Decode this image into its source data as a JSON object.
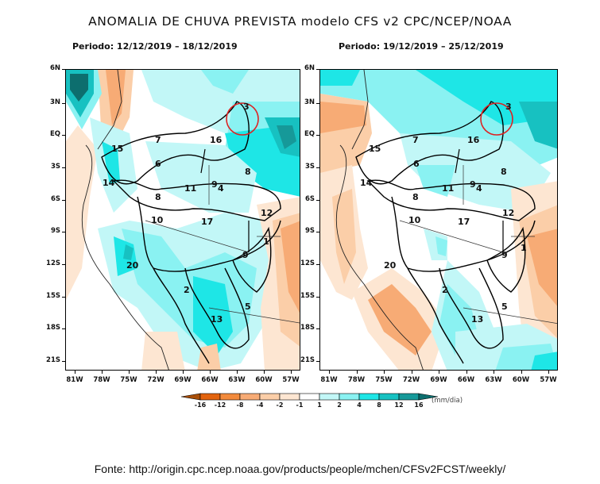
{
  "title": "ANOMALIA DE CHUVA PREVISTA modelo CFS v2 CPC/NCEP/NOAA",
  "panels": [
    {
      "period": "Periodo: 12/12/2019 – 18/12/2019"
    },
    {
      "period": "Periodo: 19/12/2019 – 25/12/2019"
    }
  ],
  "axes": {
    "lat_labels": [
      "6N",
      "3N",
      "EQ",
      "3S",
      "6S",
      "9S",
      "12S",
      "15S",
      "18S",
      "21S"
    ],
    "lon_labels": [
      "81W",
      "78W",
      "75W",
      "72W",
      "69W",
      "66W",
      "63W",
      "60W",
      "57W"
    ]
  },
  "region_labels": [
    "1",
    "2",
    "3",
    "4",
    "5",
    "6",
    "7",
    "8",
    "8",
    "9",
    "9",
    "10",
    "11",
    "12",
    "13",
    "14",
    "15",
    "16",
    "17",
    "20"
  ],
  "region_names": {
    "r1": "1",
    "r2": "2",
    "r3": "3",
    "r4": "4",
    "r5": "5",
    "r6": "6",
    "r7": "7",
    "r8": "8",
    "r8b": "8",
    "r9": "9",
    "r9b": "9",
    "r10": "10",
    "r11": "11",
    "r12": "12",
    "r13": "13",
    "r14": "14",
    "r15": "15",
    "r16": "16",
    "r17": "17",
    "r20": "20"
  },
  "legend": {
    "labels": [
      "-16",
      "-12",
      "-8",
      "-4",
      "-2",
      "-1",
      "1",
      "2",
      "4",
      "8",
      "12",
      "16"
    ],
    "unit": "(mm/dia)",
    "colors": [
      "#a84e08",
      "#e2630e",
      "#f28a3c",
      "#f7ab75",
      "#fbcea8",
      "#fde6d2",
      "#ffffff",
      "#c2f7f7",
      "#8af2f2",
      "#1ee6e6",
      "#17c1c1",
      "#169999",
      "#0d6e6e"
    ]
  },
  "source": "Fonte: http://origin.cpc.ncep.noaa.gov/products/people/mchen/CFSv2FCST/weekly/"
}
